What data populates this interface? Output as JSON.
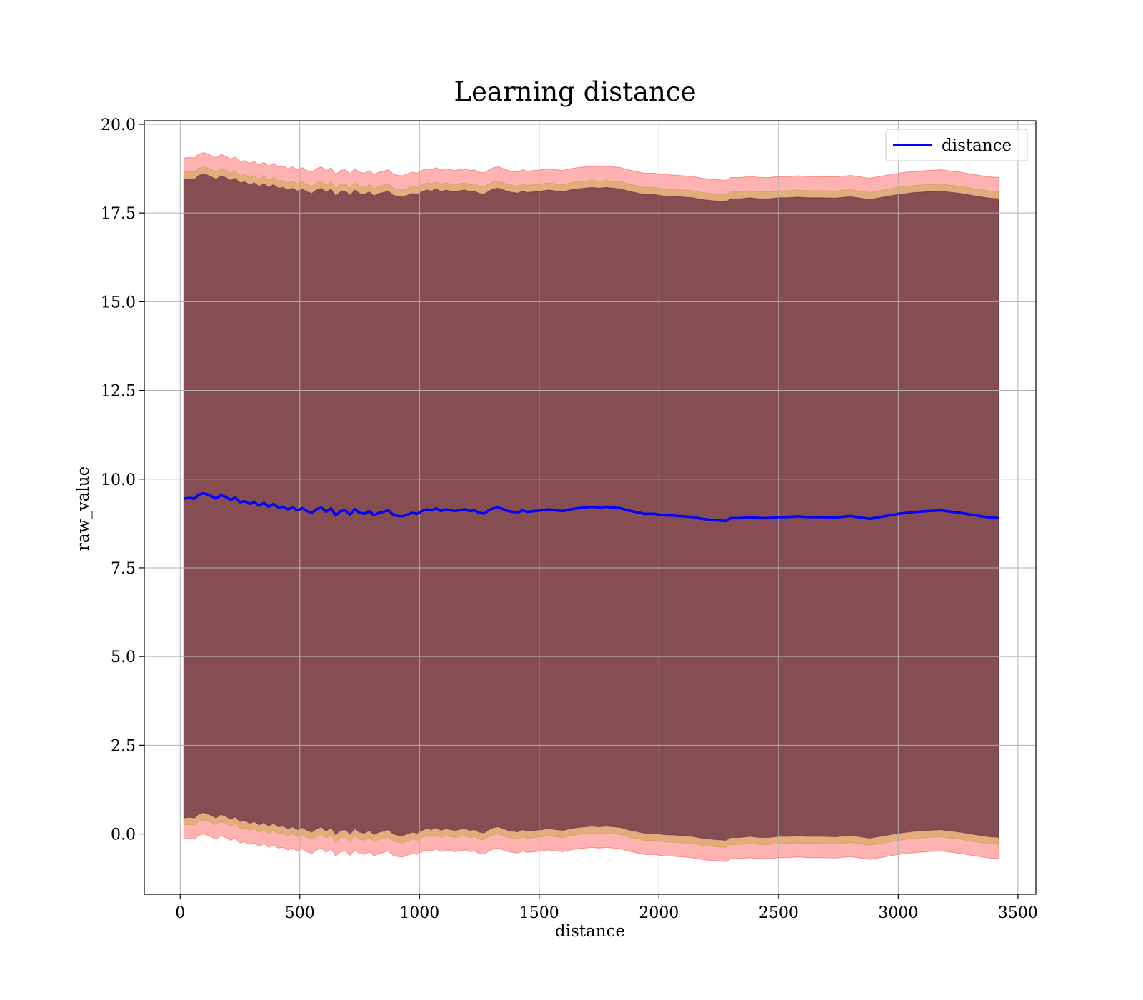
{
  "chart_data": {
    "type": "line",
    "title": "Learning distance",
    "xlabel": "distance",
    "ylabel": "raw_value",
    "xlim": [
      -150,
      3575
    ],
    "ylim": [
      -1.7,
      20.1
    ],
    "x_ticks": [
      0,
      500,
      1000,
      1500,
      2000,
      2500,
      3000,
      3500
    ],
    "x_tick_labels": [
      "0",
      "500",
      "1000",
      "1500",
      "2000",
      "2500",
      "3000",
      "3500"
    ],
    "y_ticks": [
      0,
      2.5,
      5,
      7.5,
      10,
      12.5,
      15,
      17.5,
      20
    ],
    "y_tick_labels": [
      "0.0",
      "2.5",
      "5.0",
      "7.5",
      "10.0",
      "12.5",
      "15.0",
      "17.5",
      "20.0"
    ],
    "grid": true,
    "legend_position": "upper right",
    "series": [
      {
        "name": "distance",
        "color": "#0000ff",
        "x": [
          15,
          40,
          60,
          75,
          95,
          110,
          130,
          150,
          170,
          190,
          210,
          230,
          250,
          270,
          290,
          310,
          330,
          350,
          370,
          390,
          410,
          430,
          450,
          470,
          490,
          510,
          530,
          550,
          570,
          590,
          610,
          630,
          650,
          670,
          690,
          710,
          730,
          750,
          770,
          790,
          810,
          830,
          850,
          870,
          890,
          910,
          930,
          950,
          970,
          990,
          1010,
          1030,
          1050,
          1070,
          1090,
          1110,
          1130,
          1150,
          1170,
          1190,
          1210,
          1230,
          1250,
          1270,
          1290,
          1310,
          1330,
          1350,
          1370,
          1390,
          1410,
          1430,
          1450,
          1480,
          1510,
          1540,
          1570,
          1600,
          1630,
          1660,
          1690,
          1720,
          1750,
          1780,
          1810,
          1840,
          1870,
          1900,
          1940,
          1980,
          2020,
          2060,
          2100,
          2140,
          2180,
          2220,
          2260,
          2280,
          2300,
          2340,
          2380,
          2420,
          2460,
          2500,
          2540,
          2580,
          2620,
          2680,
          2740,
          2800,
          2860,
          2880,
          2940,
          3000,
          3060,
          3120,
          3180,
          3200,
          3260,
          3320,
          3380,
          3420
        ],
        "values": [
          9.45,
          9.47,
          9.45,
          9.55,
          9.6,
          9.58,
          9.52,
          9.45,
          9.55,
          9.5,
          9.42,
          9.48,
          9.35,
          9.38,
          9.3,
          9.35,
          9.25,
          9.33,
          9.22,
          9.3,
          9.2,
          9.22,
          9.15,
          9.2,
          9.12,
          9.18,
          9.1,
          9.05,
          9.15,
          9.2,
          9.08,
          9.18,
          8.98,
          9.1,
          9.12,
          9.0,
          9.15,
          9.05,
          9.02,
          9.1,
          8.98,
          9.05,
          9.08,
          9.12,
          9.0,
          8.96,
          8.95,
          9.0,
          9.05,
          9.02,
          9.1,
          9.15,
          9.12,
          9.18,
          9.1,
          9.15,
          9.12,
          9.1,
          9.13,
          9.15,
          9.1,
          9.12,
          9.05,
          9.03,
          9.12,
          9.18,
          9.2,
          9.15,
          9.1,
          9.08,
          9.06,
          9.12,
          9.08,
          9.1,
          9.12,
          9.15,
          9.12,
          9.1,
          9.15,
          9.18,
          9.2,
          9.22,
          9.2,
          9.22,
          9.2,
          9.18,
          9.12,
          9.08,
          9.02,
          9.02,
          8.98,
          8.97,
          8.95,
          8.93,
          8.88,
          8.85,
          8.83,
          8.82,
          8.9,
          8.9,
          8.93,
          8.9,
          8.9,
          8.93,
          8.93,
          8.95,
          8.93,
          8.93,
          8.92,
          8.96,
          8.9,
          8.88,
          8.95,
          9.02,
          9.07,
          9.1,
          9.12,
          9.1,
          9.05,
          8.98,
          8.92,
          8.9
        ]
      }
    ],
    "bands": [
      {
        "name": "outer band",
        "color": "#ff0000",
        "alpha": 0.3,
        "half_width": 9.6
      },
      {
        "name": "middle band",
        "color": "#a0a000",
        "alpha": 0.3,
        "half_width": 9.2
      },
      {
        "name": "inner band",
        "color": "#3a0030",
        "alpha": 0.55,
        "half_width": 9.0
      }
    ]
  }
}
